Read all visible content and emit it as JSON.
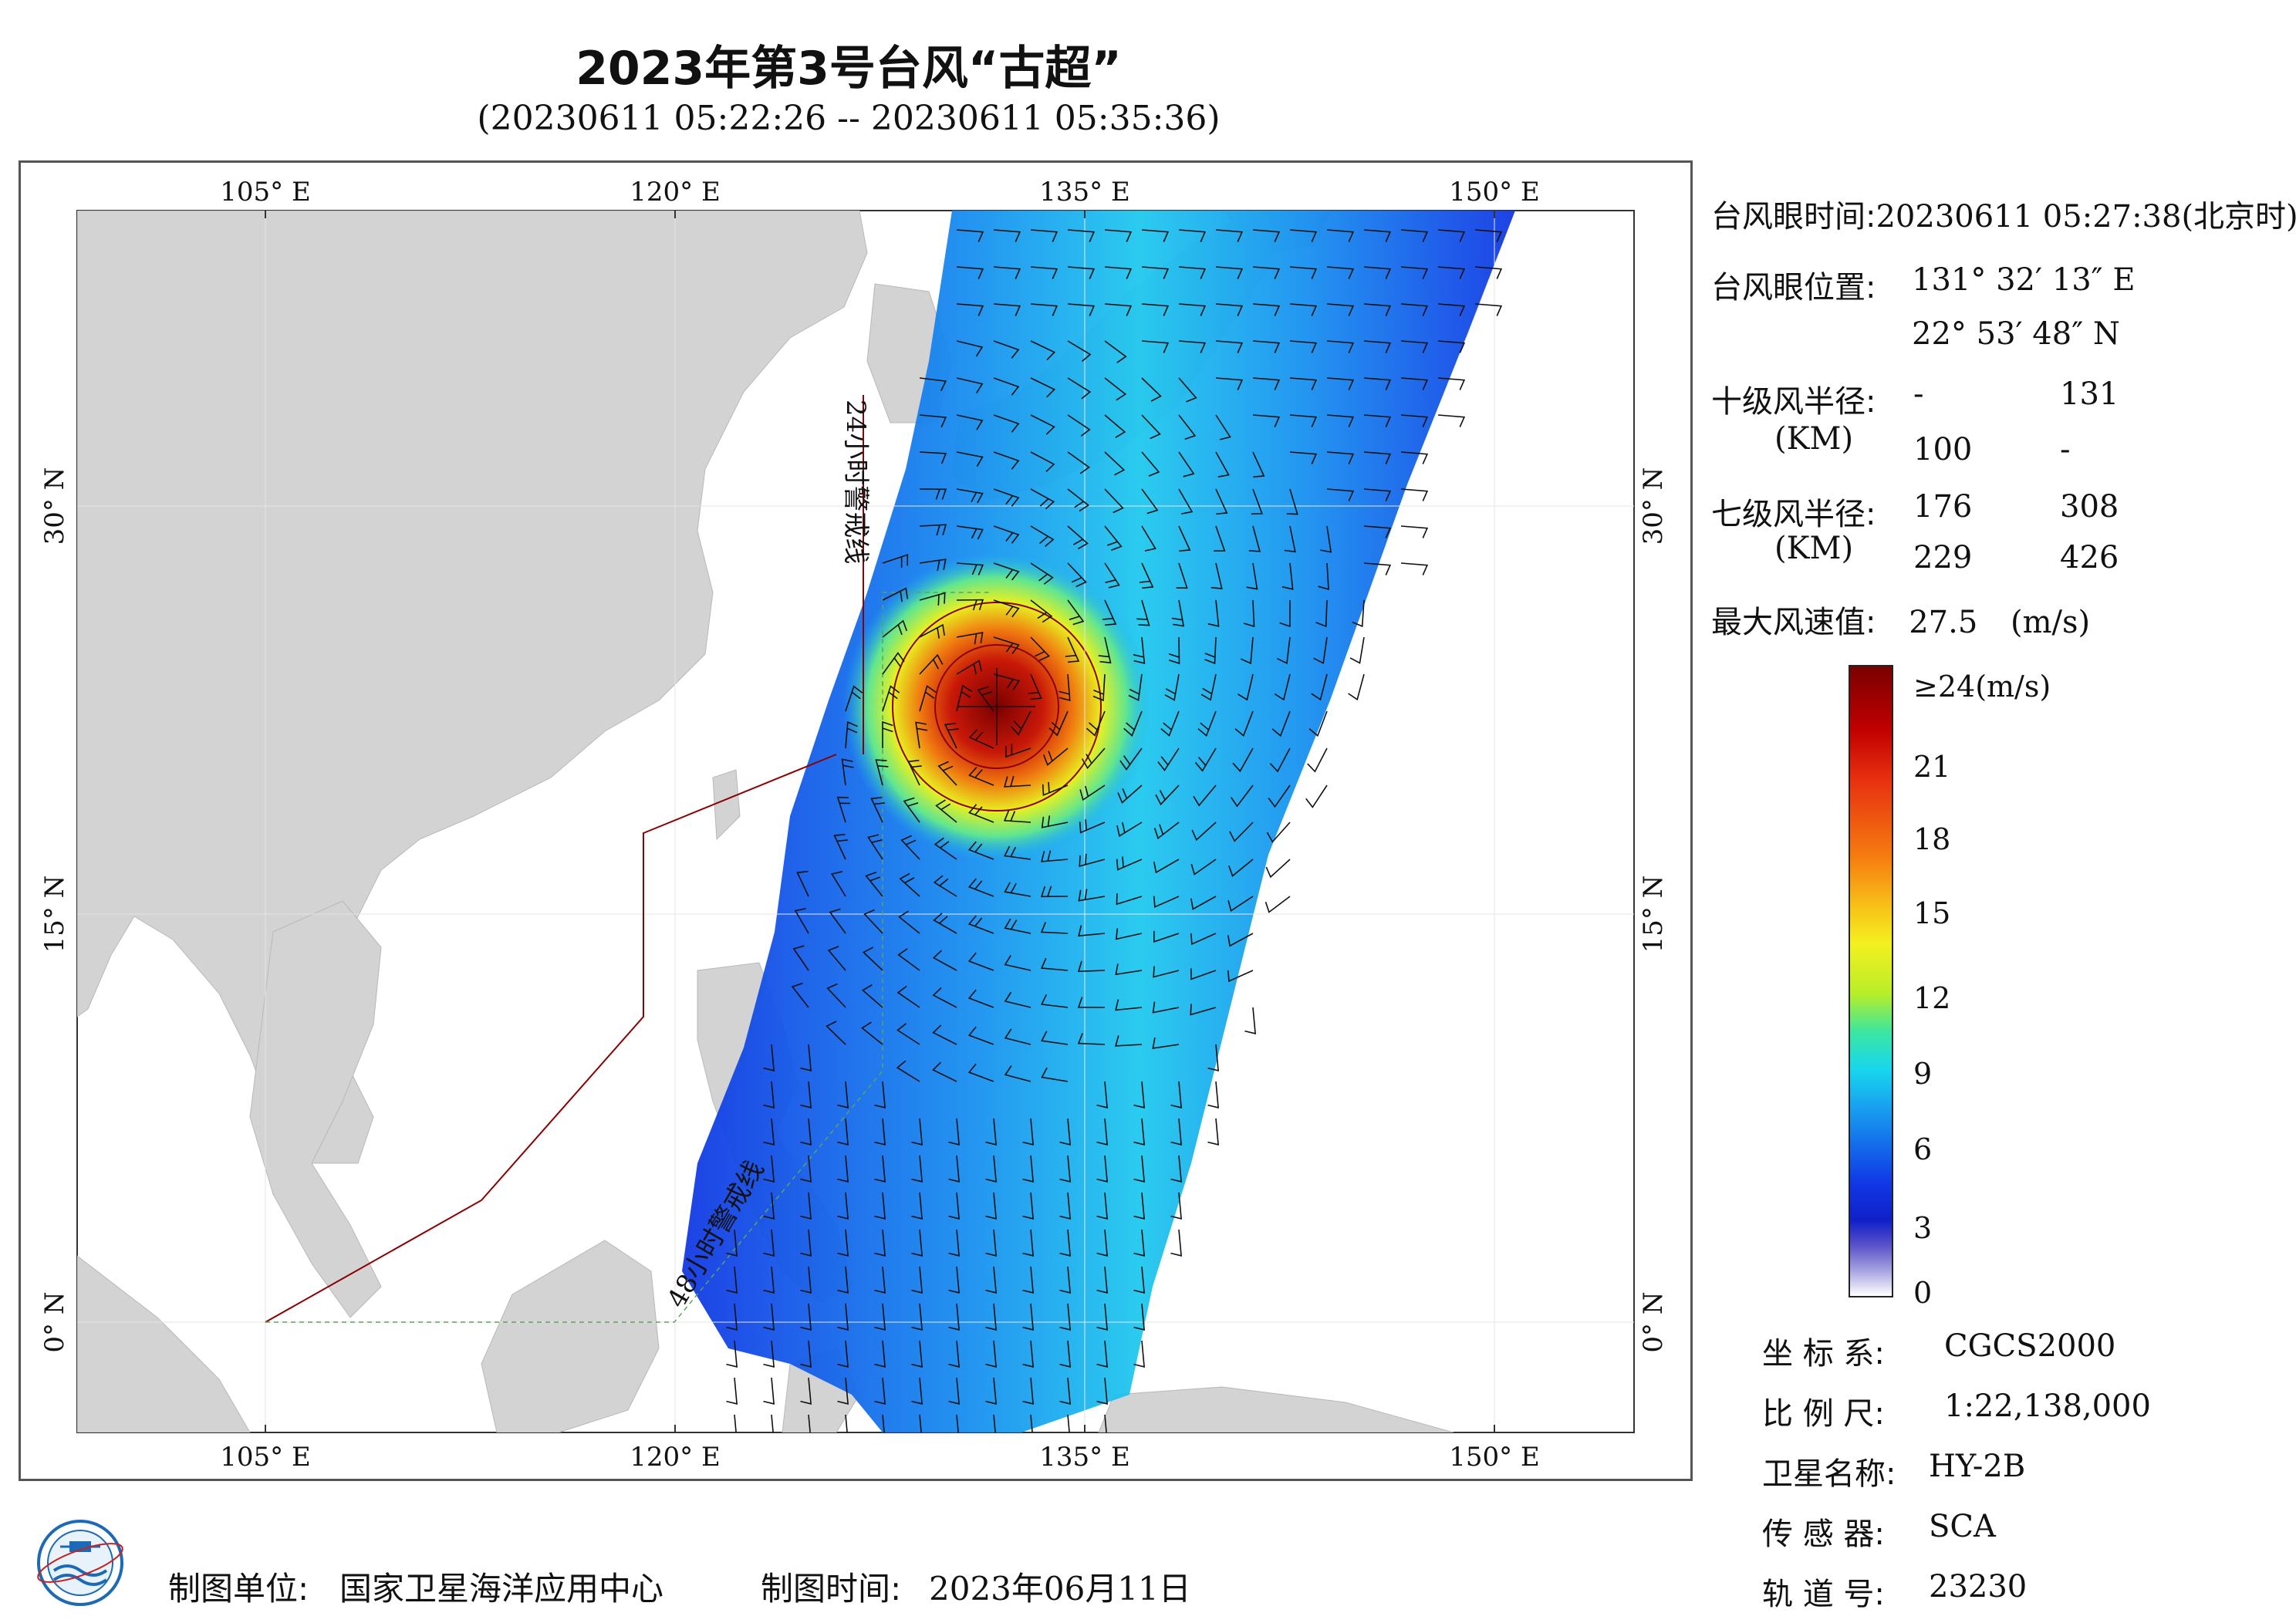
{
  "title": "2023年第3号台风“古超”",
  "subtitle": "(20230611 05:22:26 -- 20230611 05:35:36)",
  "map": {
    "lon_range": [
      100,
      157
    ],
    "lat_range": [
      -4,
      41
    ],
    "top_lon_labels": [
      "105° E",
      "120° E",
      "135° E",
      "150° E"
    ],
    "bottom_lon_labels": [
      "105° E",
      "120° E",
      "135° E",
      "150° E"
    ],
    "left_lat_labels": [
      "30° N",
      "15° N",
      "0° N"
    ],
    "right_lat_labels": [
      "30° N",
      "15° N",
      "0° N"
    ],
    "land_color": "#d3d3d3",
    "swath_colors": [
      "#1030e0",
      "#1890f0",
      "#18d0ee",
      "#60e690",
      "#e8f020",
      "#f59010",
      "#d81c0c",
      "#7a0000"
    ],
    "eye_lon": 131.537,
    "eye_lat": 22.897,
    "vertical_note_top": "24小时警戒线",
    "vertical_note_bottom": "48小时警戒线"
  },
  "info": {
    "eye_time_label": "台风眼时间:",
    "eye_time_value": "20230611 05:27:38(北京时)",
    "eye_pos_label": "台风眼位置:",
    "eye_lon_text": "131° 32′ 13″ E",
    "eye_lat_text": "22° 53′ 48″ N",
    "r10_label": "十级风半径:",
    "r10_unit": "(KM)",
    "r10_values": [
      "-",
      "131",
      "100",
      "-"
    ],
    "r7_label": "七级风半径:",
    "r7_unit": "(KM)",
    "r7_values": [
      "176",
      "308",
      "229",
      "426"
    ],
    "max_wind_label": "最大风速值:",
    "max_wind_value": "27.5",
    "max_wind_unit": "(m/s)"
  },
  "legend": {
    "top_label": "≥24(m/s)",
    "ticks": [
      "21",
      "18",
      "15",
      "12",
      "9",
      "6",
      "3",
      "0"
    ]
  },
  "meta": {
    "coord_label": "坐 标 系:",
    "coord_value": "CGCS2000",
    "scale_label": "比 例 尺:",
    "scale_value": "1:22,138,000",
    "sat_label": "卫星名称:",
    "sat_value": "HY-2B",
    "sensor_label": "传 感 器:",
    "sensor_value": "SCA",
    "orbit_label": "轨 道 号:",
    "orbit_value": "23230"
  },
  "footer": {
    "org_label": "制图单位:",
    "org_value": "国家卫星海洋应用中心",
    "date_label": "制图时间:",
    "date_value": "2023年06月11日"
  }
}
